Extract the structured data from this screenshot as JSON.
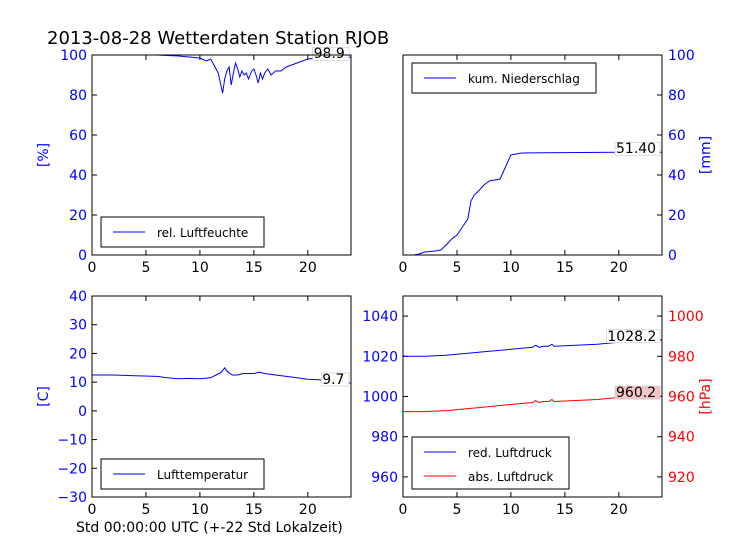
{
  "title": "2013-08-28 Wetterdaten Station RJOB",
  "xlabel": "Std 00:00:00 UTC (+-22 Std Lokalzeit)",
  "colors": {
    "blue": "#0000ff",
    "red": "#ff0000",
    "black": "#000000"
  },
  "chart_data": [
    {
      "type": "line",
      "legend": "rel. Luftfeuchte",
      "legend_position": "lower-left",
      "ylabel": "[%]",
      "xlim": [
        0,
        24
      ],
      "ylim": [
        0,
        100
      ],
      "xticks": [
        0,
        5,
        10,
        15,
        20
      ],
      "yticks": [
        0,
        20,
        40,
        60,
        80,
        100
      ],
      "last_value_label": "98.9",
      "series": [
        {
          "color": "#0000ff",
          "x": [
            0,
            2,
            4,
            6,
            8,
            9,
            10,
            10.6,
            11,
            11.4,
            11.7,
            11.9,
            12.1,
            12.3,
            12.5,
            12.7,
            12.9,
            13.1,
            13.3,
            13.5,
            13.7,
            13.9,
            14.1,
            14.3,
            14.5,
            14.8,
            15,
            15.2,
            15.4,
            15.6,
            15.8,
            16,
            16.3,
            16.6,
            17,
            17.5,
            18,
            18.5,
            19,
            20,
            21,
            22,
            23,
            24
          ],
          "y": [
            100,
            100,
            100,
            100,
            99.5,
            99,
            98.5,
            97,
            98,
            94,
            91,
            86,
            81,
            88,
            92,
            94,
            85,
            91,
            96,
            93,
            89,
            92,
            90,
            91,
            88,
            92,
            93,
            90,
            86,
            91,
            88,
            91,
            93,
            90,
            92,
            92,
            94,
            95,
            96,
            98,
            98.5,
            98.7,
            98.9,
            98.9
          ]
        }
      ]
    },
    {
      "type": "line",
      "legend": "kum. Niederschlag",
      "legend_position": "upper-left",
      "ylabel": "[mm]",
      "xlim": [
        0,
        24
      ],
      "ylim": [
        0,
        100
      ],
      "xticks": [
        0,
        5,
        10,
        15,
        20
      ],
      "yticks": [
        0,
        20,
        40,
        60,
        80,
        100
      ],
      "last_value_label": "51.40",
      "series": [
        {
          "color": "#0000ff",
          "x": [
            0,
            1,
            1.5,
            2,
            3,
            3.5,
            4,
            4.5,
            5,
            5.5,
            6,
            6.3,
            6.6,
            7,
            7.5,
            8,
            8.5,
            9,
            9.5,
            10,
            11,
            13,
            15,
            18,
            20,
            22,
            24
          ],
          "y": [
            0,
            0,
            0.5,
            1.5,
            2,
            2.5,
            5,
            8,
            10,
            14,
            18,
            27,
            30,
            32,
            35,
            37,
            37.5,
            38,
            44,
            50,
            51,
            51.1,
            51.2,
            51.3,
            51.35,
            51.4,
            51.4
          ]
        }
      ]
    },
    {
      "type": "line",
      "legend": "Lufttemperatur",
      "legend_position": "lower-left",
      "ylabel": "[C]",
      "xlim": [
        0,
        24
      ],
      "ylim": [
        -30,
        40
      ],
      "xticks": [
        0,
        5,
        10,
        15,
        20
      ],
      "yticks": [
        -30,
        -20,
        -10,
        0,
        10,
        20,
        30,
        40
      ],
      "last_value_label": "9.7",
      "series": [
        {
          "color": "#0000ff",
          "x": [
            0,
            2,
            4,
            6,
            7,
            8,
            9,
            10,
            11,
            11.5,
            12,
            12.3,
            12.6,
            13,
            13.5,
            14,
            15,
            15.5,
            16,
            17,
            18,
            19,
            20,
            21,
            22,
            23,
            24
          ],
          "y": [
            12.5,
            12.5,
            12.2,
            12,
            11.5,
            11.2,
            11.3,
            11.2,
            11.5,
            12.5,
            13.5,
            15,
            13.5,
            12.5,
            12.5,
            13,
            13,
            13.5,
            13,
            12.5,
            12,
            11.5,
            11,
            10.8,
            10.5,
            10,
            9.7
          ]
        }
      ]
    },
    {
      "type": "line",
      "legend_position": "lower-left",
      "ylabel_right": "[hPa]",
      "xlim": [
        0,
        24
      ],
      "ylim": [
        950,
        1050
      ],
      "ylim_right": [
        910,
        1010
      ],
      "xticks": [
        0,
        5,
        10,
        15,
        20
      ],
      "yticks": [
        960,
        980,
        1000,
        1020,
        1040
      ],
      "yticks_right": [
        920,
        940,
        960,
        980,
        1000
      ],
      "series": [
        {
          "name": "red. Luftdruck",
          "color": "#0000ff",
          "axis": "left",
          "last_value_label": "1028.2",
          "x": [
            0,
            2,
            4,
            6,
            8,
            10,
            11,
            12,
            12.3,
            12.6,
            13,
            13.5,
            13.8,
            14,
            16,
            18,
            20,
            22,
            24
          ],
          "y": [
            1020,
            1020,
            1020.5,
            1021.5,
            1022.5,
            1023.5,
            1024,
            1024.5,
            1025.5,
            1024.5,
            1025,
            1025,
            1026,
            1025,
            1025.5,
            1026,
            1027,
            1028,
            1028.2
          ]
        },
        {
          "name": "abs. Luftdruck",
          "color": "#ff0000",
          "axis": "right",
          "last_value_label": "960.2",
          "x": [
            0,
            2,
            4,
            6,
            8,
            10,
            11,
            12,
            12.3,
            12.6,
            13,
            13.5,
            13.8,
            14,
            16,
            18,
            20,
            22,
            24
          ],
          "y": [
            952.5,
            952.5,
            953,
            954,
            955,
            956,
            956.5,
            957,
            958,
            957,
            957.5,
            957.5,
            958.5,
            957.5,
            958,
            958.5,
            959.5,
            960,
            960.2
          ]
        }
      ]
    }
  ]
}
